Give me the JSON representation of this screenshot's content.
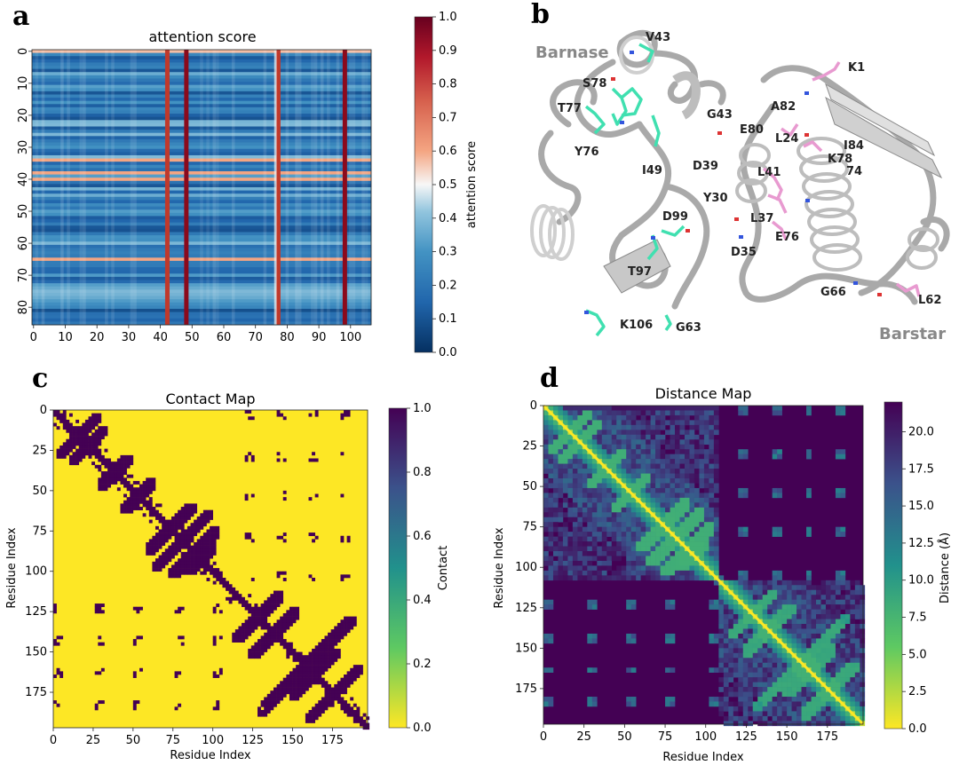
{
  "panels": [
    {
      "letter": "a",
      "title": "attention score",
      "colorbar_label": "attention score",
      "colorbar_ticks": [
        "0.0",
        "0.1",
        "0.2",
        "0.3",
        "0.4",
        "0.5",
        "0.6",
        "0.7",
        "0.8",
        "0.9",
        "1.0"
      ]
    },
    {
      "letter": "b",
      "labels": {
        "barnase": "Barnase",
        "barstar": "Barstar",
        "residues_barnase": [
          "V43",
          "S78",
          "T77",
          "Y76",
          "I49",
          "D99",
          "T97",
          "K106",
          "G63"
        ],
        "residues_barstar": [
          "K1",
          "A82",
          "G43",
          "E80",
          "L24",
          "I84",
          "K78",
          "74",
          "D39",
          "L41",
          "Y30",
          "L37",
          "E76",
          "D35",
          "G66",
          "L62"
        ]
      }
    },
    {
      "letter": "c",
      "title": "Contact Map",
      "xlabel": "Residue Index",
      "ylabel": "Residue Index",
      "colorbar_label": "Contact",
      "colorbar_ticks": [
        "0.0",
        "0.2",
        "0.4",
        "0.6",
        "0.8",
        "1.0"
      ]
    },
    {
      "letter": "d",
      "title": "Distance Map",
      "xlabel": "Residue Index",
      "ylabel": "Residue Index",
      "colorbar_label": "Distance (Å)",
      "colorbar_ticks": [
        "0.0",
        "2.5",
        "5.0",
        "7.5",
        "10.0",
        "12.5",
        "15.0",
        "17.5",
        "20.0"
      ]
    }
  ],
  "chart_data": [
    {
      "type": "heatmap",
      "title": "attention score",
      "x_ticks": [
        0,
        10,
        20,
        30,
        40,
        50,
        60,
        70,
        80,
        90,
        100
      ],
      "y_ticks": [
        0,
        10,
        20,
        30,
        40,
        50,
        60,
        70,
        80
      ],
      "xlim": [
        0,
        107
      ],
      "ylim": [
        0,
        86
      ],
      "colorbar": {
        "label": "attention score",
        "range": [
          0.0,
          1.0
        ],
        "cmap": "RdBu_r"
      },
      "high_columns": [
        42,
        48,
        77,
        98
      ],
      "high_rows": [
        0,
        34,
        38,
        40,
        65
      ],
      "colors": {
        "low": "#08306b",
        "mid": "#f7f7f7",
        "high": "#8b0a1c"
      }
    },
    {
      "type": "heatmap",
      "title": "Contact Map",
      "xlabel": "Residue Index",
      "ylabel": "Residue Index",
      "x_ticks": [
        0,
        25,
        50,
        75,
        100,
        125,
        150,
        175
      ],
      "y_ticks": [
        0,
        25,
        50,
        75,
        100,
        125,
        150,
        175
      ],
      "size": 197,
      "domain_boundary": 108,
      "colorbar": {
        "label": "Contact",
        "range": [
          0.0,
          1.0
        ],
        "cmap": "viridis_r"
      },
      "colors": {
        "no_contact": "#fde725",
        "contact": "#440154"
      }
    },
    {
      "type": "heatmap",
      "title": "Distance Map",
      "xlabel": "Residue Index",
      "ylabel": "Residue Index",
      "x_ticks": [
        0,
        25,
        50,
        75,
        100,
        125,
        150,
        175
      ],
      "y_ticks": [
        0,
        25,
        50,
        75,
        100,
        125,
        150,
        175
      ],
      "size": 197,
      "domain_boundary": 108,
      "colorbar": {
        "label": "Distance (Å)",
        "range": [
          0.0,
          22.0
        ],
        "cmap": "viridis_r"
      },
      "colors": {
        "near": "#fde725",
        "mid": "#21918c",
        "far": "#440154"
      }
    }
  ]
}
